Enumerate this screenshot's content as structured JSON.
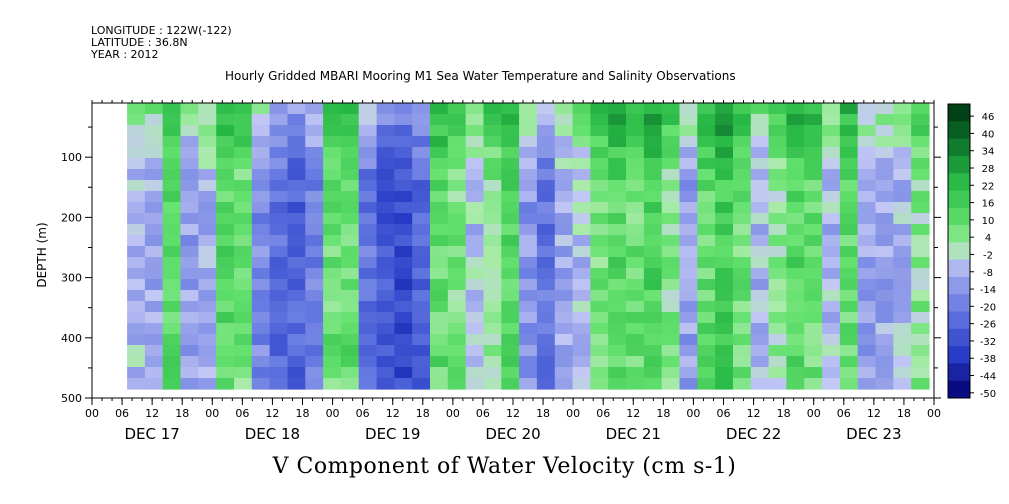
{
  "header": {
    "longitude": "LONGITUDE : 122W(-122)",
    "latitude": "LATITUDE : 36.8N",
    "year": "YEAR : 2012"
  },
  "chart_data": {
    "type": "heatmap",
    "title": "Hourly Gridded MBARI Mooring M1 Sea Water Temperature and Salinity Observations",
    "variable_title": "V Component of Water Velocity (cm s-1)",
    "ylabel": "DEPTH (m)",
    "ylim": [
      500,
      10
    ],
    "y_ticks": [
      100,
      200,
      300,
      400,
      500
    ],
    "x_hour_ticks": [
      "00",
      "06",
      "12",
      "18",
      "00",
      "06",
      "12",
      "18",
      "00",
      "06",
      "12",
      "18",
      "00",
      "06",
      "12",
      "18",
      "00",
      "06",
      "12",
      "18",
      "00",
      "06",
      "12",
      "18",
      "00",
      "06",
      "12",
      "18",
      "00"
    ],
    "x_day_labels": [
      "DEC 17",
      "DEC 18",
      "DEC 19",
      "DEC 20",
      "DEC 21",
      "DEC 22",
      "DEC 23"
    ],
    "colorbar_levels": [
      "46",
      "40",
      "34",
      "28",
      "22",
      "16",
      "10",
      "4",
      "-2",
      "-8",
      "-14",
      "-20",
      "-26",
      "-32",
      "-38",
      "-44",
      "-50"
    ],
    "colorbar_range": [
      -50,
      50
    ],
    "data_extent": {
      "time_start_hour": 7,
      "time_end_hour": 167,
      "depth_top": 10,
      "depth_bottom": 485
    },
    "column_mean_v": [
      -5,
      -8,
      12,
      -10,
      -6,
      14,
      8,
      -15,
      -22,
      -25,
      -18,
      10,
      12,
      -20,
      -28,
      -30,
      -25,
      12,
      8,
      -4,
      6,
      14,
      -12,
      -20,
      -8,
      -4,
      8,
      14,
      10,
      16,
      6,
      -10,
      12,
      18,
      10,
      -6,
      4,
      14,
      10,
      -5,
      12,
      -10,
      -8,
      -6,
      6
    ],
    "surface_bias_v": 14
  }
}
